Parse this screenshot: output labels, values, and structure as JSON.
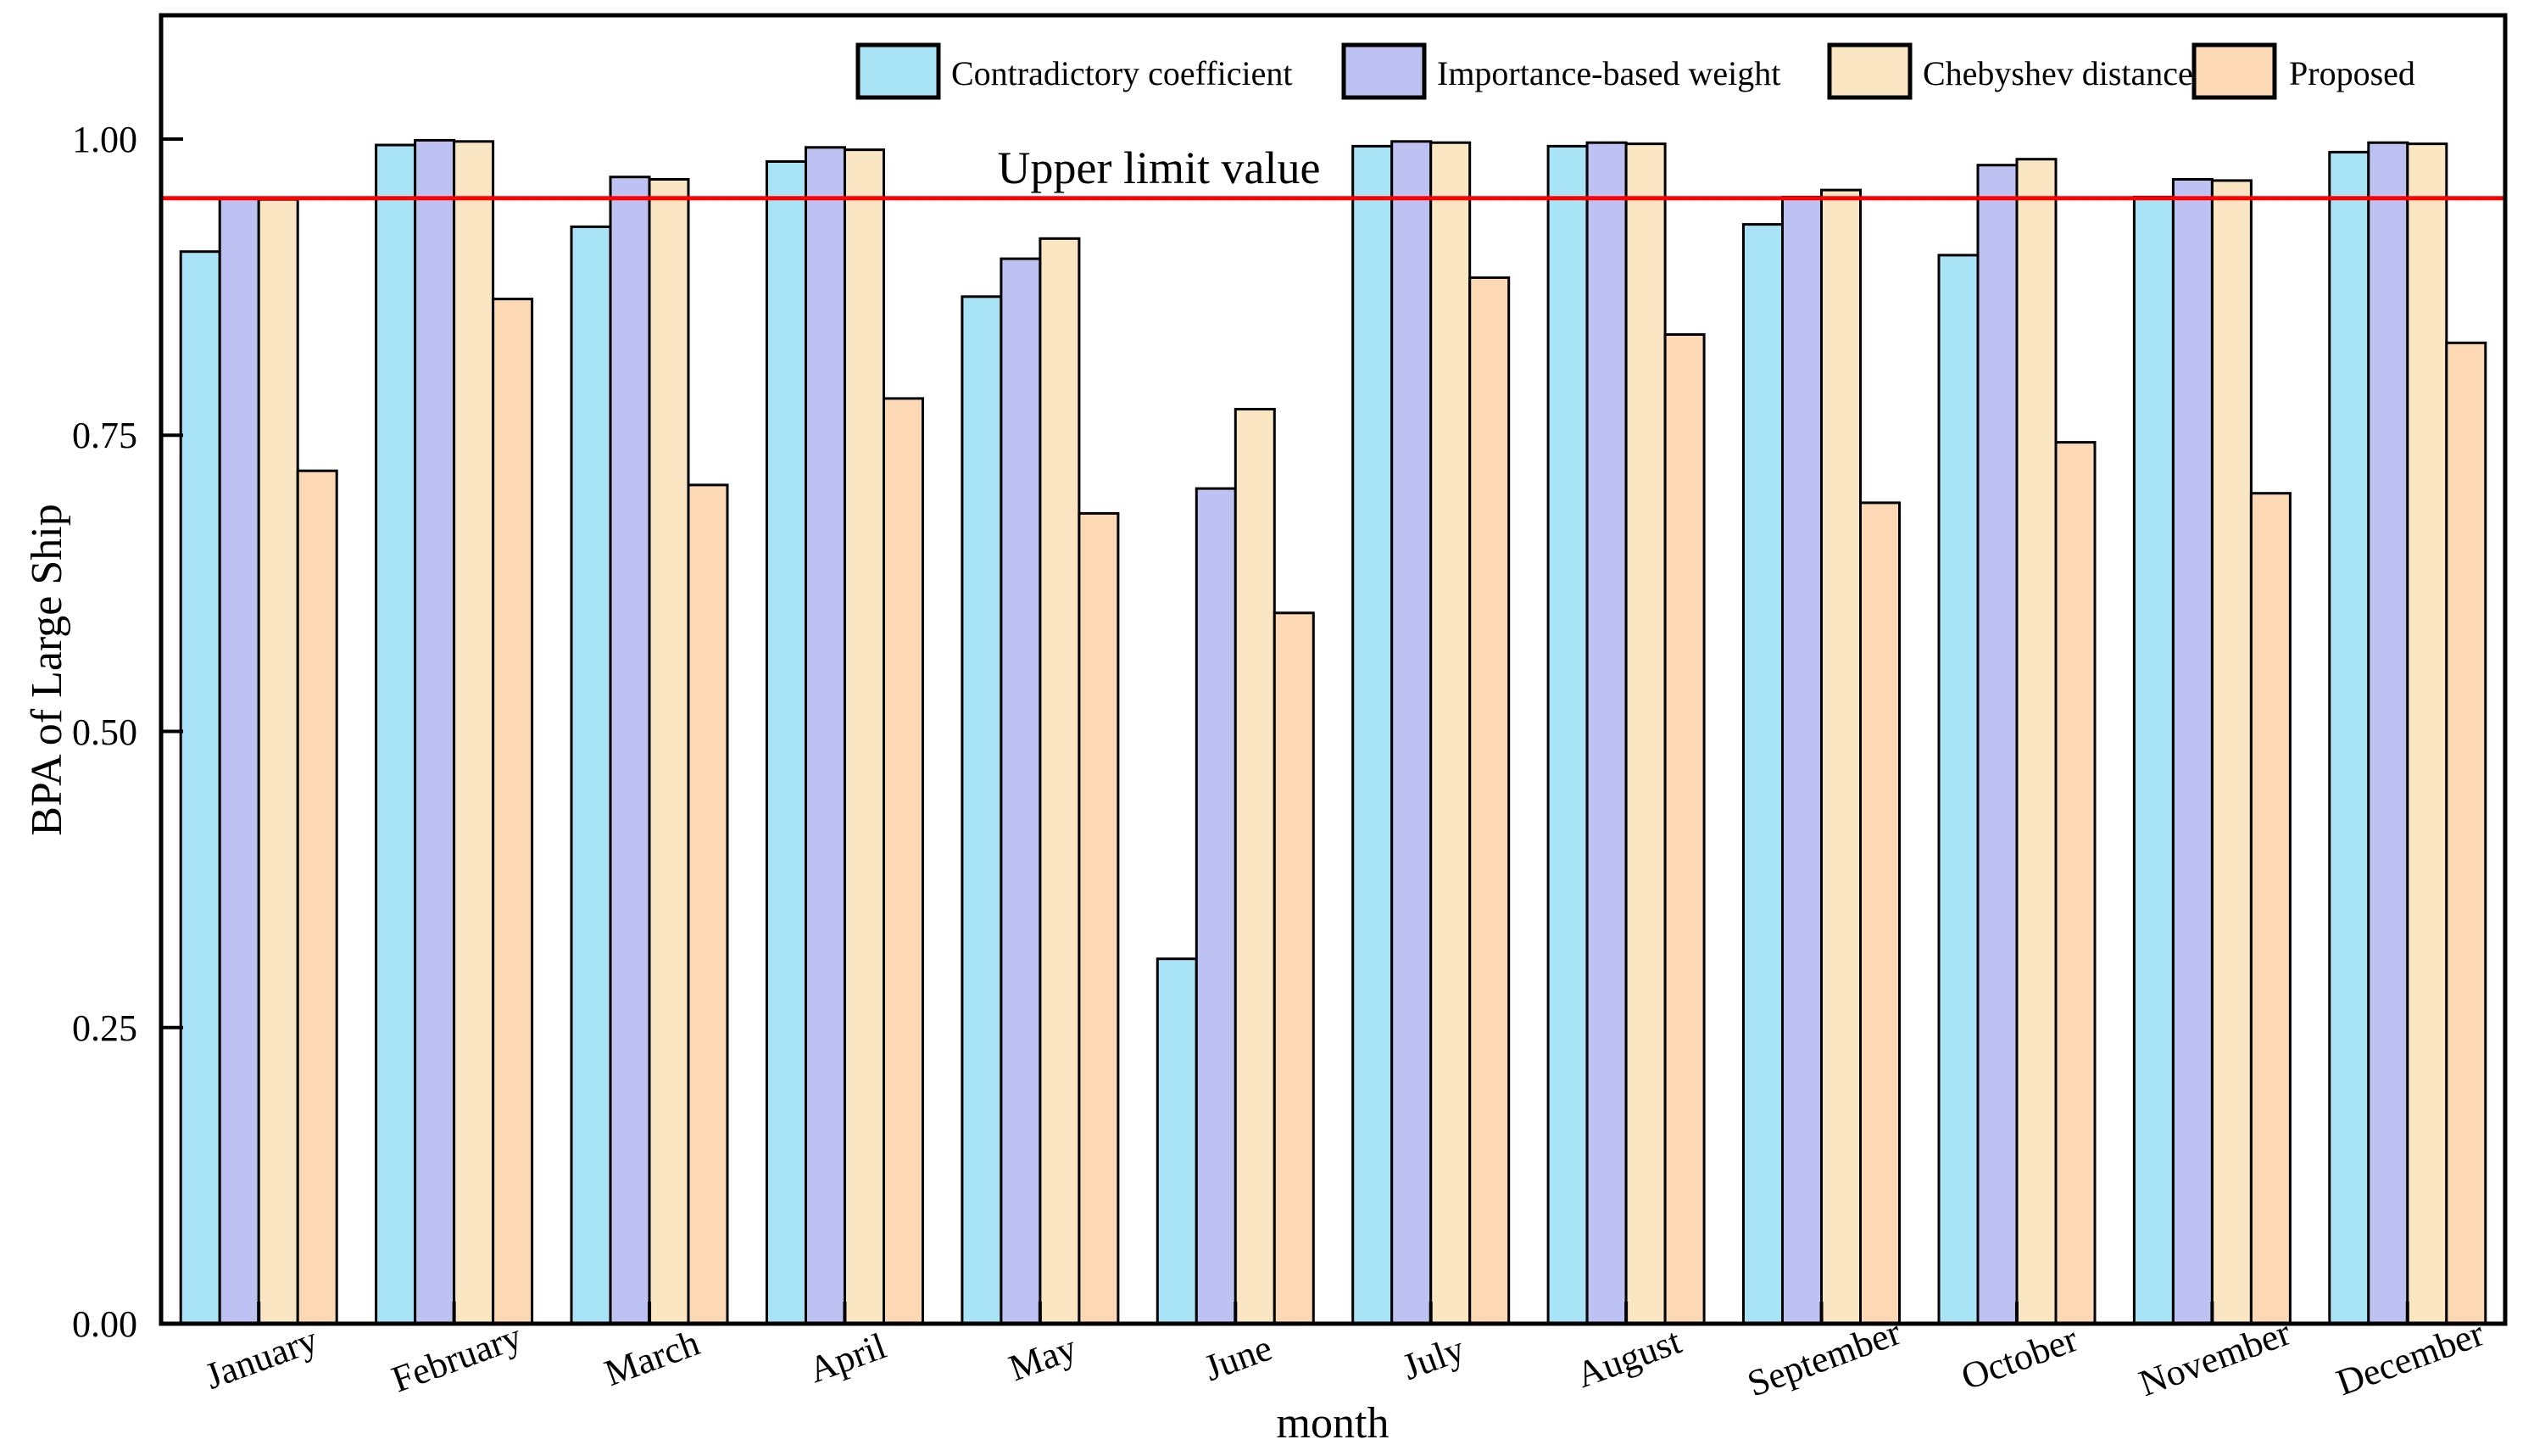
{
  "figure": {
    "background": "#FFFFFF",
    "frame_color": "#000000"
  },
  "chart_data": {
    "type": "bar",
    "title": "",
    "xlabel": "month",
    "ylabel": "BPA of Large Ship",
    "categories": [
      "January",
      "February",
      "March",
      "April",
      "May",
      "June",
      "July",
      "August",
      "September",
      "October",
      "November",
      "December"
    ],
    "series": [
      {
        "name": "Contradictory coefficient",
        "color": "#A8E4F5",
        "values": [
          0.905,
          0.995,
          0.926,
          0.981,
          0.867,
          0.308,
          0.994,
          0.994,
          0.928,
          0.902,
          0.951,
          0.989
        ]
      },
      {
        "name": "Importance-based weight",
        "color": "#BDC2F3",
        "values": [
          0.95,
          0.999,
          0.968,
          0.993,
          0.899,
          0.705,
          0.998,
          0.997,
          0.951,
          0.978,
          0.966,
          0.997
        ]
      },
      {
        "name": "Chebyshev distance",
        "color": "#FAE6C3",
        "values": [
          0.949,
          0.998,
          0.966,
          0.991,
          0.916,
          0.772,
          0.997,
          0.996,
          0.957,
          0.983,
          0.965,
          0.996
        ]
      },
      {
        "name": "Proposed",
        "color": "#FCD8B5",
        "values": [
          0.72,
          0.865,
          0.708,
          0.781,
          0.684,
          0.6,
          0.883,
          0.835,
          0.693,
          0.744,
          0.701,
          0.828
        ]
      }
    ],
    "y_ticks": [
      "0.00",
      "0.25",
      "0.50",
      "0.75",
      "1.00"
    ],
    "y_tick_values": [
      0,
      0.25,
      0.5,
      0.75,
      1.0
    ],
    "ylim": [
      0,
      1.1045
    ],
    "bar_edge_color": "#000000",
    "reference_line": {
      "label": "Upper limit value",
      "value": 0.95,
      "color": "#FF0000"
    },
    "legend_position": "top-inside",
    "grid": "off"
  }
}
